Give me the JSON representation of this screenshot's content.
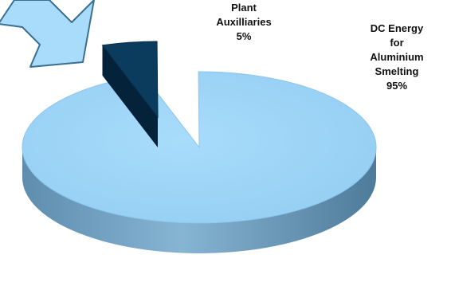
{
  "chart_data": {
    "type": "pie",
    "style": "3d-exploded",
    "categories": [
      "DC Energy for Aluminium Smelting",
      "Plant Auxilliaries"
    ],
    "values": [
      95,
      5
    ],
    "unit": "%",
    "slices": [
      {
        "name": "DC Energy for Aluminium Smelting",
        "value": 95,
        "label_lines": [
          "DC Energy",
          "for",
          "Aluminium",
          "Smelting",
          "95%"
        ],
        "color": "#9fd5f7",
        "side_color": "#6d9cbc"
      },
      {
        "name": "Plant Auxilliaries",
        "value": 5,
        "label_lines": [
          "Plant",
          "Auxilliaries",
          "5%"
        ],
        "color": "#0b3c5d",
        "side_color": "#062a44"
      }
    ],
    "legend": "none",
    "grid": false,
    "title": ""
  },
  "decoration": {
    "arrow_icon": "down-left-arrow-icon",
    "arrow_color": "#a9dcfa",
    "arrow_outline": "#3a6f91"
  }
}
